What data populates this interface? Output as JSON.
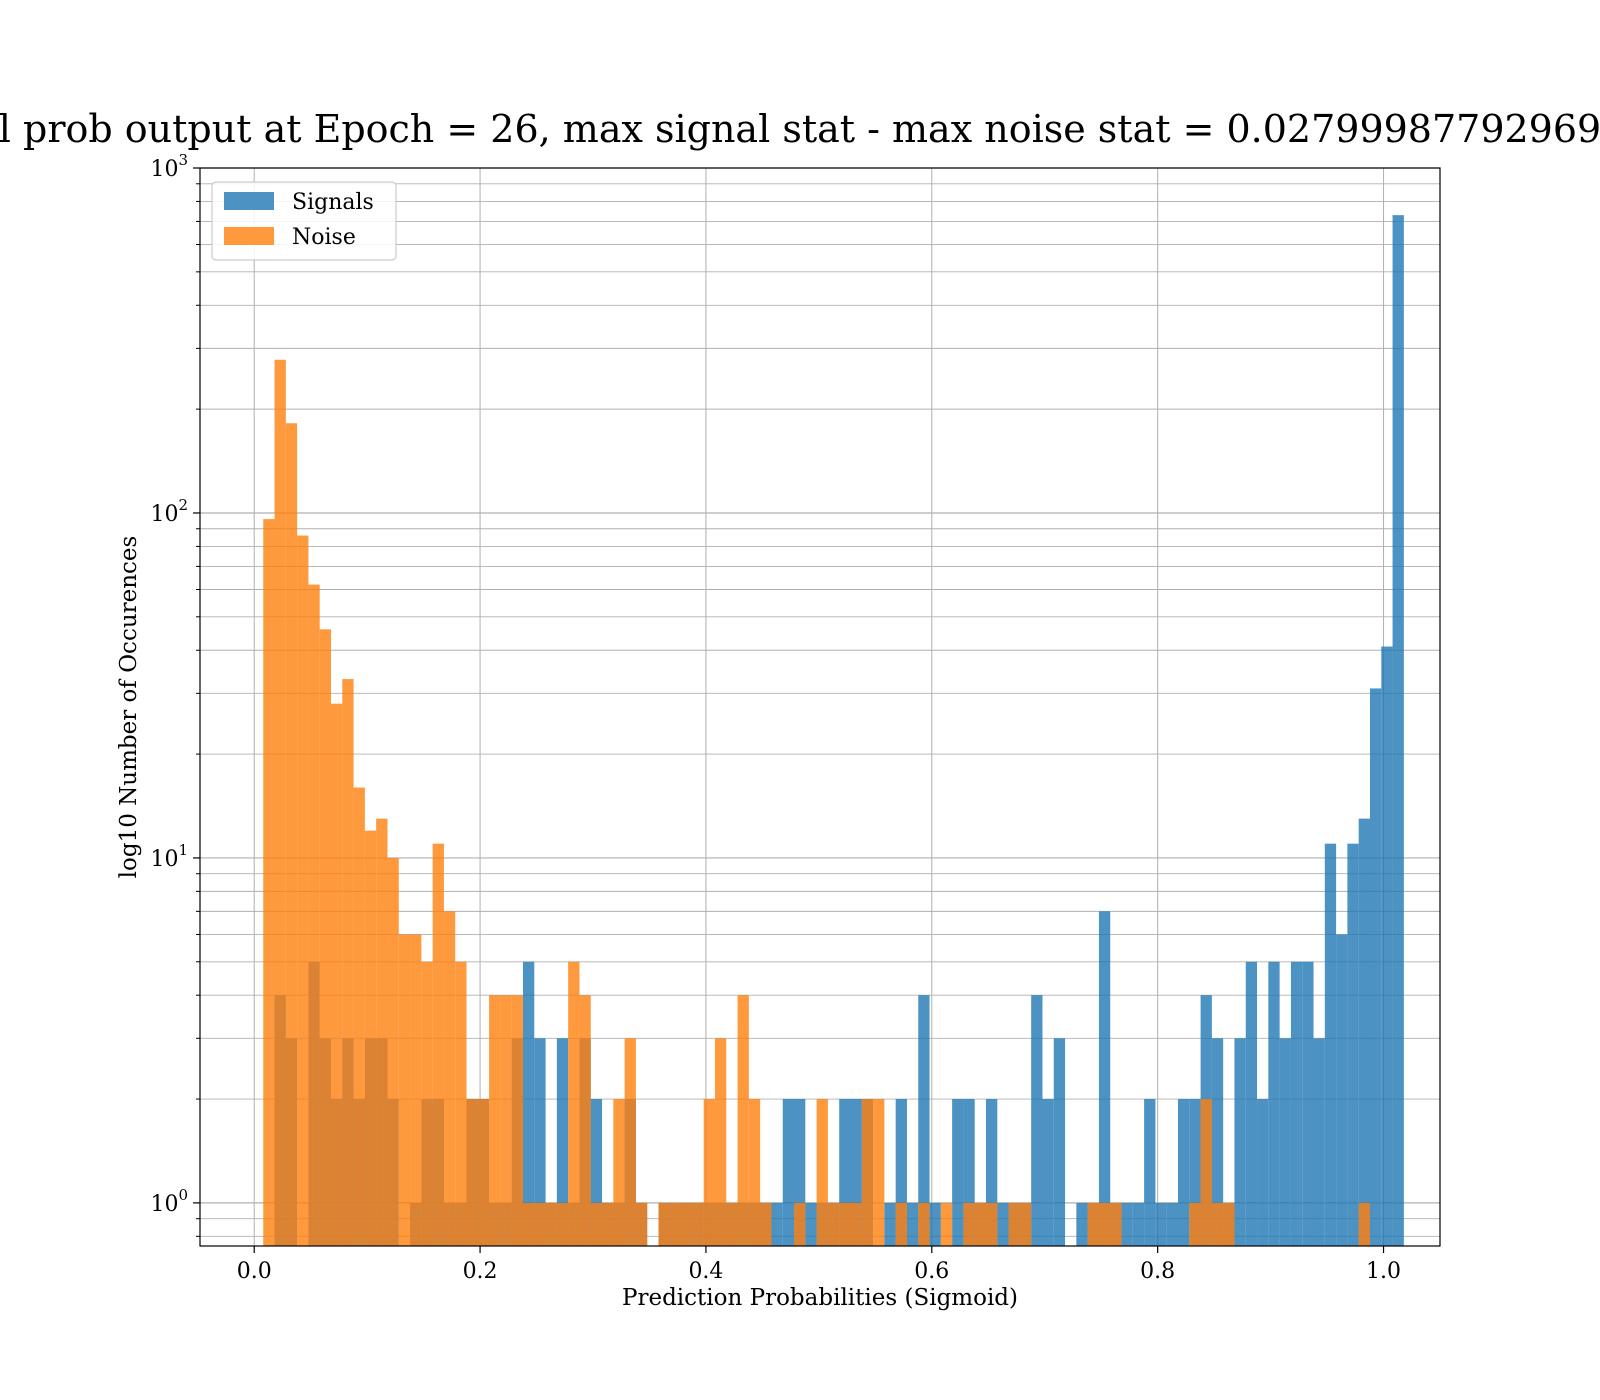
{
  "chart_data": {
    "type": "bar",
    "subtype": "histogram",
    "title": "l prob output at Epoch = 26, max signal stat - max noise stat = 0.02799987792969",
    "xlabel": "Prediction Probabilities (Sigmoid)",
    "ylabel": "log10 Number of Occurences",
    "xlim": [
      -0.048,
      1.05
    ],
    "ylim": [
      0.75,
      1000
    ],
    "yscale": "log",
    "grid": true,
    "legend_position": "top-left",
    "bin_width": 0.01,
    "x_ticks": [
      {
        "value": 0.0,
        "label": "0.0"
      },
      {
        "value": 0.2,
        "label": "0.2"
      },
      {
        "value": 0.4,
        "label": "0.4"
      },
      {
        "value": 0.6,
        "label": "0.6"
      },
      {
        "value": 0.8,
        "label": "0.8"
      },
      {
        "value": 1.0,
        "label": "1.0"
      }
    ],
    "y_ticks": [
      {
        "value": 1,
        "base": "10",
        "exp": "0"
      },
      {
        "value": 10,
        "base": "10",
        "exp": "1"
      },
      {
        "value": 100,
        "base": "10",
        "exp": "2"
      },
      {
        "value": 1000,
        "base": "10",
        "exp": "3"
      }
    ],
    "series": [
      {
        "name": "Signals",
        "color": "#1f77b4",
        "opacity": 0.8,
        "bins": [
          [
            0.018,
            4
          ],
          [
            0.028,
            3
          ],
          [
            0.048,
            5
          ],
          [
            0.058,
            3
          ],
          [
            0.068,
            2
          ],
          [
            0.078,
            3
          ],
          [
            0.088,
            2
          ],
          [
            0.098,
            3
          ],
          [
            0.108,
            3
          ],
          [
            0.118,
            2
          ],
          [
            0.138,
            1
          ],
          [
            0.148,
            2
          ],
          [
            0.158,
            2
          ],
          [
            0.168,
            1
          ],
          [
            0.178,
            1
          ],
          [
            0.188,
            2
          ],
          [
            0.198,
            2
          ],
          [
            0.208,
            1
          ],
          [
            0.218,
            1
          ],
          [
            0.228,
            3
          ],
          [
            0.238,
            5
          ],
          [
            0.248,
            3
          ],
          [
            0.258,
            1
          ],
          [
            0.268,
            3
          ],
          [
            0.278,
            1
          ],
          [
            0.288,
            3
          ],
          [
            0.298,
            2
          ],
          [
            0.308,
            1
          ],
          [
            0.318,
            1
          ],
          [
            0.328,
            2
          ],
          [
            0.338,
            1
          ],
          [
            0.358,
            1
          ],
          [
            0.368,
            1
          ],
          [
            0.378,
            1
          ],
          [
            0.388,
            1
          ],
          [
            0.398,
            1
          ],
          [
            0.408,
            1
          ],
          [
            0.418,
            1
          ],
          [
            0.428,
            1
          ],
          [
            0.438,
            1
          ],
          [
            0.448,
            1
          ],
          [
            0.458,
            1
          ],
          [
            0.468,
            2
          ],
          [
            0.478,
            2
          ],
          [
            0.488,
            1
          ],
          [
            0.498,
            1
          ],
          [
            0.508,
            1
          ],
          [
            0.518,
            2
          ],
          [
            0.528,
            2
          ],
          [
            0.538,
            2
          ],
          [
            0.558,
            1
          ],
          [
            0.568,
            2
          ],
          [
            0.578,
            1
          ],
          [
            0.588,
            4
          ],
          [
            0.598,
            1
          ],
          [
            0.618,
            2
          ],
          [
            0.628,
            2
          ],
          [
            0.638,
            1
          ],
          [
            0.648,
            2
          ],
          [
            0.658,
            1
          ],
          [
            0.668,
            1
          ],
          [
            0.678,
            1
          ],
          [
            0.688,
            4
          ],
          [
            0.698,
            2
          ],
          [
            0.708,
            3
          ],
          [
            0.728,
            1
          ],
          [
            0.738,
            1
          ],
          [
            0.748,
            7
          ],
          [
            0.758,
            1
          ],
          [
            0.768,
            1
          ],
          [
            0.778,
            1
          ],
          [
            0.788,
            2
          ],
          [
            0.798,
            1
          ],
          [
            0.808,
            1
          ],
          [
            0.818,
            2
          ],
          [
            0.828,
            2
          ],
          [
            0.838,
            4
          ],
          [
            0.848,
            3
          ],
          [
            0.858,
            1
          ],
          [
            0.868,
            3
          ],
          [
            0.878,
            5
          ],
          [
            0.888,
            2
          ],
          [
            0.898,
            5
          ],
          [
            0.908,
            3
          ],
          [
            0.918,
            5
          ],
          [
            0.928,
            5
          ],
          [
            0.938,
            3
          ],
          [
            0.948,
            11
          ],
          [
            0.958,
            6
          ],
          [
            0.968,
            11
          ],
          [
            0.978,
            13
          ],
          [
            0.988,
            31
          ],
          [
            0.998,
            41
          ],
          [
            1.008,
            730
          ]
        ]
      },
      {
        "name": "Noise",
        "color": "#ff7f0e",
        "opacity": 0.8,
        "bins": [
          [
            0.008,
            96
          ],
          [
            0.018,
            278
          ],
          [
            0.028,
            182
          ],
          [
            0.038,
            86
          ],
          [
            0.048,
            62
          ],
          [
            0.058,
            46
          ],
          [
            0.068,
            28
          ],
          [
            0.078,
            33
          ],
          [
            0.088,
            16
          ],
          [
            0.098,
            12
          ],
          [
            0.108,
            13
          ],
          [
            0.118,
            10
          ],
          [
            0.128,
            6
          ],
          [
            0.138,
            6
          ],
          [
            0.148,
            5
          ],
          [
            0.158,
            11
          ],
          [
            0.168,
            7
          ],
          [
            0.178,
            5
          ],
          [
            0.188,
            2
          ],
          [
            0.198,
            2
          ],
          [
            0.208,
            4
          ],
          [
            0.218,
            4
          ],
          [
            0.228,
            4
          ],
          [
            0.238,
            1
          ],
          [
            0.248,
            1
          ],
          [
            0.258,
            1
          ],
          [
            0.268,
            1
          ],
          [
            0.278,
            5
          ],
          [
            0.288,
            4
          ],
          [
            0.298,
            1
          ],
          [
            0.308,
            1
          ],
          [
            0.318,
            2
          ],
          [
            0.328,
            3
          ],
          [
            0.338,
            1
          ],
          [
            0.358,
            1
          ],
          [
            0.368,
            1
          ],
          [
            0.378,
            1
          ],
          [
            0.388,
            1
          ],
          [
            0.398,
            2
          ],
          [
            0.408,
            3
          ],
          [
            0.418,
            1
          ],
          [
            0.428,
            4
          ],
          [
            0.438,
            2
          ],
          [
            0.448,
            1
          ],
          [
            0.478,
            1
          ],
          [
            0.498,
            2
          ],
          [
            0.508,
            1
          ],
          [
            0.518,
            1
          ],
          [
            0.528,
            1
          ],
          [
            0.538,
            2
          ],
          [
            0.548,
            2
          ],
          [
            0.568,
            1
          ],
          [
            0.588,
            1
          ],
          [
            0.608,
            1
          ],
          [
            0.628,
            1
          ],
          [
            0.638,
            1
          ],
          [
            0.648,
            1
          ],
          [
            0.668,
            1
          ],
          [
            0.678,
            1
          ],
          [
            0.738,
            1
          ],
          [
            0.748,
            1
          ],
          [
            0.758,
            1
          ],
          [
            0.828,
            1
          ],
          [
            0.838,
            2
          ],
          [
            0.848,
            1
          ],
          [
            0.858,
            1
          ],
          [
            0.978,
            1
          ]
        ]
      }
    ]
  }
}
